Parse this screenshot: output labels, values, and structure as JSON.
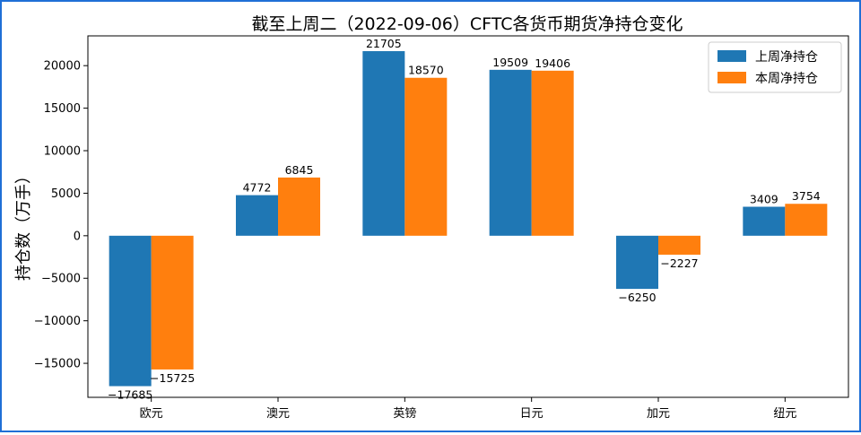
{
  "chart_data": {
    "type": "bar",
    "title": "截至上周二（2022-09-06）CFTC各货币期货净持仓变化",
    "xlabel": "",
    "ylabel": "持仓数（万手）",
    "categories": [
      "欧元",
      "澳元",
      "英镑",
      "日元",
      "加元",
      "纽元"
    ],
    "series": [
      {
        "name": "上周净持仓",
        "color": "#1f77b4",
        "values": [
          -17685,
          4772,
          21705,
          19509,
          -6250,
          3409
        ]
      },
      {
        "name": "本周净持仓",
        "color": "#ff7f0e",
        "values": [
          -15725,
          6845,
          18570,
          19406,
          -2227,
          3754
        ]
      }
    ],
    "ylim": [
      -19000,
      23500
    ],
    "yticks": [
      -15000,
      -10000,
      -5000,
      0,
      5000,
      10000,
      15000,
      20000
    ],
    "legend_position": "top-right",
    "grid": false
  }
}
